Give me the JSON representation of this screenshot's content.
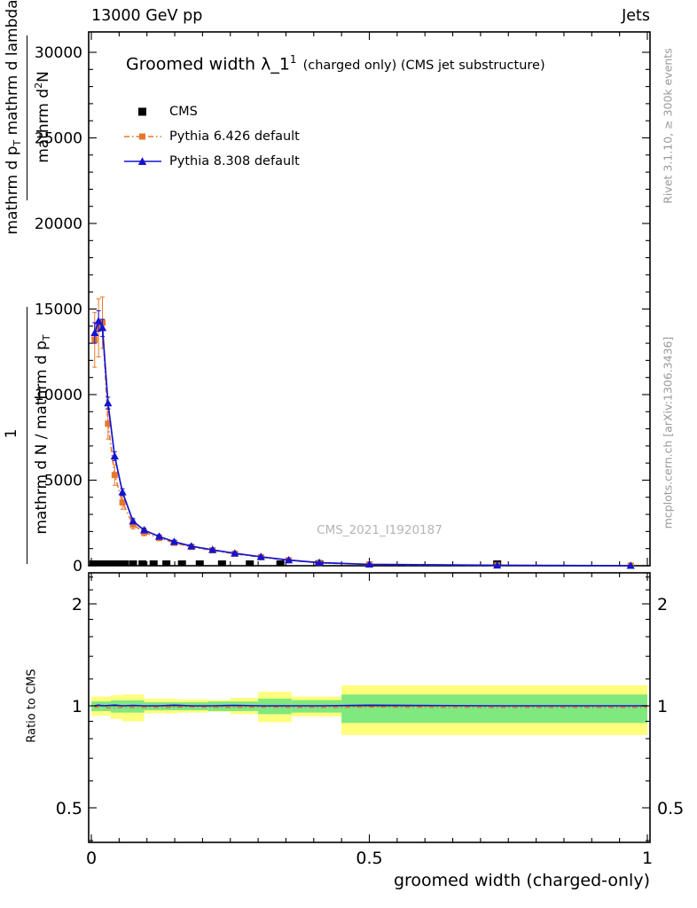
{
  "header": {
    "left": "13000 GeV pp",
    "right": "Jets"
  },
  "title": {
    "main": "Groomed width λ_1",
    "sup": "1",
    "rest": "(charged only) (CMS jet substructure)"
  },
  "legend": [
    {
      "label": "CMS"
    },
    {
      "label": "Pythia 6.426 default"
    },
    {
      "label": "Pythia 8.308 default"
    }
  ],
  "watermark": "CMS_2021_I1920187",
  "side_notes": {
    "right_top": "Rivet 3.1.10, ≥ 300k events",
    "right_bottom": "mcplots.cern.ch [arXiv:1306.3436]"
  },
  "axis_labels": {
    "x": "groomed width (charged-only)",
    "ratio_y": "Ratio to CMS",
    "y_top_num_a": "mathrm d",
    "y_top_num_sup": "2",
    "y_top_num_b": "N",
    "y_top_den_a": "mathrm d p",
    "y_sub_t": "T",
    "y_top_den_b": " mathrm d lambda",
    "y_bot_num": "1",
    "y_bot_den_a": "mathrm d N / mathrm d p",
    "y_bot_den_sub": "T"
  },
  "chart_data": {
    "type": "line",
    "title": "Groomed width λ_1^1 (charged only) (CMS jet substructure)",
    "header": [
      "13000 GeV pp",
      "Jets"
    ],
    "xlabel": "groomed width (charged-only)",
    "ylabel": "1 / mathrm d N / mathrm d p_T · mathrm d²N / mathrm d p_T mathrm d lambda",
    "ratio_ylabel": "Ratio to CMS",
    "annotations": [
      "CMS_2021_I1920187",
      "Rivet 3.1.10, ≥ 300k events",
      "mcplots.cern.ch [arXiv:1306.3436]"
    ],
    "legend": [
      "CMS",
      "Pythia 6.426 default",
      "Pythia 8.308 default"
    ],
    "xlim": [
      0,
      1
    ],
    "ylim": [
      0,
      30000
    ],
    "ratio_ylim": [
      0.39,
      2.47
    ],
    "ratio_scale": "log",
    "grid": false,
    "xticks": {
      "values": [
        0,
        0.5,
        1
      ],
      "labels": [
        "0",
        "0.5",
        "1"
      ]
    },
    "x_minor_step": 0.05,
    "yticks": {
      "values": [
        0,
        5000,
        10000,
        15000,
        20000,
        25000,
        30000
      ],
      "labels": [
        "0",
        "5000",
        "10000",
        "15000",
        "20000",
        "25000",
        "30000"
      ]
    },
    "y_minor_step": 1000,
    "ratio_yticks": {
      "values": [
        0.5,
        1,
        2
      ],
      "labels": [
        "0.5",
        "1",
        "2"
      ]
    },
    "ratio_yminors": [
      0.4,
      0.6,
      0.7,
      0.8,
      0.9,
      1.2,
      1.4,
      1.6,
      1.8,
      2.2,
      2.4
    ],
    "colors": {
      "pythia6": "#e8762c",
      "pythia8": "#1414cf",
      "cms": "#000000",
      "band_outer": "#ffff7d",
      "band_inner": "#7fe87f",
      "watermark": "#b5b5b5",
      "side_note": "#999999"
    },
    "series": [
      {
        "name": "CMS",
        "marker": "square",
        "color": "#000000",
        "x": [
          0.004,
          0.012,
          0.02,
          0.028,
          0.037,
          0.048,
          0.06,
          0.075,
          0.092,
          0.112,
          0.135,
          0.163,
          0.195,
          0.235,
          0.285,
          0.34,
          0.41,
          0.73
        ],
        "y": [
          0,
          0,
          0,
          0,
          0,
          0,
          0,
          0,
          0,
          0,
          0,
          0,
          0,
          0,
          0,
          0,
          0,
          0
        ]
      },
      {
        "name": "Pythia 6.426 default",
        "marker": "square",
        "color": "#e8762c",
        "style": "dashdot",
        "x": [
          0.006,
          0.013,
          0.02,
          0.03,
          0.042,
          0.056,
          0.075,
          0.095,
          0.122,
          0.149,
          0.18,
          0.218,
          0.258,
          0.305,
          0.355,
          0.41,
          0.5,
          0.73,
          0.97
        ],
        "y": [
          13200,
          13900,
          14200,
          8300,
          5300,
          3700,
          2400,
          1950,
          1620,
          1340,
          1100,
          900,
          700,
          500,
          320,
          170,
          75,
          22,
          3
        ],
        "yerr": [
          1600,
          1700,
          1500,
          900,
          600,
          400,
          250,
          200,
          150,
          120,
          100,
          85,
          70,
          55,
          45,
          30,
          15,
          8,
          2
        ]
      },
      {
        "name": "Pythia 8.308 default",
        "marker": "triangle",
        "color": "#1414cf",
        "style": "solid",
        "x": [
          0.006,
          0.013,
          0.02,
          0.03,
          0.042,
          0.056,
          0.075,
          0.095,
          0.122,
          0.149,
          0.18,
          0.218,
          0.258,
          0.305,
          0.355,
          0.41,
          0.5,
          0.73,
          0.97
        ],
        "y": [
          13600,
          14300,
          13900,
          9500,
          6400,
          4300,
          2600,
          2080,
          1710,
          1400,
          1140,
          930,
          725,
          520,
          330,
          180,
          80,
          25,
          4
        ],
        "yerr": [
          600,
          600,
          500,
          350,
          250,
          200,
          150,
          120,
          100,
          90,
          80,
          70,
          60,
          50,
          40,
          30,
          15,
          8,
          2
        ]
      }
    ],
    "ratio": {
      "bands": {
        "yellow": [
          [
            0.0,
            0.035,
            0.935,
            1.065
          ],
          [
            0.035,
            0.055,
            0.915,
            1.075
          ],
          [
            0.055,
            0.095,
            0.9,
            1.08
          ],
          [
            0.095,
            0.155,
            0.95,
            1.05
          ],
          [
            0.155,
            0.21,
            0.955,
            1.045
          ],
          [
            0.21,
            0.25,
            0.96,
            1.04
          ],
          [
            0.25,
            0.3,
            0.945,
            1.055
          ],
          [
            0.3,
            0.36,
            0.895,
            1.1
          ],
          [
            0.36,
            0.45,
            0.93,
            1.065
          ],
          [
            0.45,
            1.0,
            0.82,
            1.15
          ]
        ],
        "green": [
          [
            0.0,
            0.035,
            0.965,
            1.03
          ],
          [
            0.035,
            0.095,
            0.955,
            1.038
          ],
          [
            0.095,
            0.21,
            0.97,
            1.025
          ],
          [
            0.21,
            0.3,
            0.965,
            1.03
          ],
          [
            0.3,
            0.36,
            0.945,
            1.05
          ],
          [
            0.36,
            0.45,
            0.955,
            1.04
          ],
          [
            0.45,
            1.0,
            0.89,
            1.08
          ]
        ]
      },
      "lines": [
        {
          "name": "Pythia 6.426 default",
          "color": "#e8762c",
          "style": "dashdot",
          "x": [
            0.006,
            0.013,
            0.02,
            0.03,
            0.042,
            0.056,
            0.075,
            0.095,
            0.122,
            0.149,
            0.18,
            0.218,
            0.258,
            0.305,
            0.355,
            0.41,
            0.5,
            0.73,
            0.97,
            1.0
          ],
          "values": [
            0.99,
            0.995,
            1.005,
            0.985,
            0.985,
            0.99,
            0.99,
            0.99,
            0.99,
            0.99,
            0.992,
            0.99,
            0.99,
            0.992,
            0.99,
            0.99,
            0.992,
            0.99,
            0.99,
            0.99
          ]
        },
        {
          "name": "Pythia 8.308 default",
          "color": "#1414cf",
          "style": "solid",
          "x": [
            0.006,
            0.013,
            0.02,
            0.03,
            0.042,
            0.056,
            0.075,
            0.095,
            0.122,
            0.149,
            0.18,
            0.218,
            0.258,
            0.305,
            0.355,
            0.41,
            0.5,
            0.73,
            0.97,
            1.0
          ],
          "values": [
            1.0,
            1.005,
            1.0,
            1.002,
            1.005,
            1.0,
            1.003,
            1.0,
            1.0,
            1.004,
            1.0,
            1.0,
            1.003,
            1.0,
            1.0,
            1.0,
            1.004,
            1.0,
            1.0,
            1.0
          ]
        }
      ]
    }
  }
}
